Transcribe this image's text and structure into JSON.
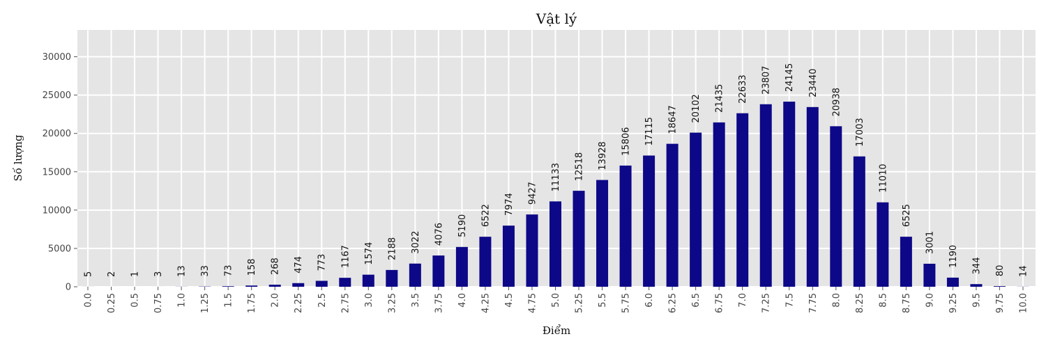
{
  "chart_data": {
    "type": "bar",
    "title": "Vật lý",
    "xlabel": "Điểm",
    "ylabel": "Số lượng",
    "ylim": [
      0,
      33500
    ],
    "y_ticks": [
      0,
      5000,
      10000,
      15000,
      20000,
      25000,
      30000
    ],
    "y_tick_labels": [
      "0",
      "5000",
      "10000",
      "15000",
      "20000",
      "25000",
      "30000"
    ],
    "grid": true,
    "background": "#e5e5e5",
    "bar_color": "#0d0887",
    "categories": [
      "0.0",
      "0.25",
      "0.5",
      "0.75",
      "1.0",
      "1.25",
      "1.5",
      "1.75",
      "2.0",
      "2.25",
      "2.5",
      "2.75",
      "3.0",
      "3.25",
      "3.5",
      "3.75",
      "4.0",
      "4.25",
      "4.5",
      "4.75",
      "5.0",
      "5.25",
      "5.5",
      "5.75",
      "6.0",
      "6.25",
      "6.5",
      "6.75",
      "7.0",
      "7.25",
      "7.5",
      "7.75",
      "8.0",
      "8.25",
      "8.5",
      "8.75",
      "9.0",
      "9.25",
      "9.5",
      "9.75",
      "10.0"
    ],
    "values": [
      5,
      2,
      1,
      3,
      13,
      33,
      73,
      158,
      268,
      474,
      773,
      1167,
      1574,
      2188,
      3022,
      4076,
      5190,
      6522,
      7974,
      9427,
      11133,
      12518,
      13928,
      15806,
      17115,
      18647,
      20102,
      21435,
      22633,
      23807,
      24145,
      23440,
      20938,
      17003,
      11010,
      6525,
      3001,
      1190,
      344,
      80,
      14
    ]
  }
}
